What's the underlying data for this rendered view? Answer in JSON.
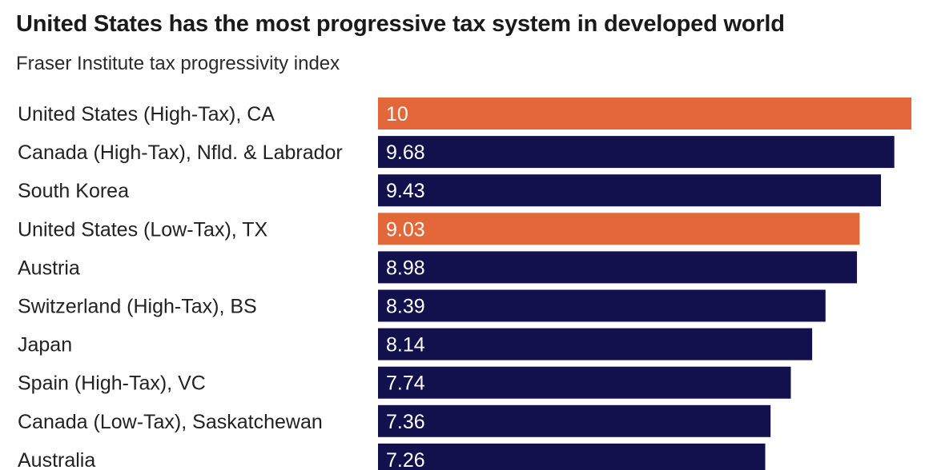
{
  "title": "United States has the most progressive tax system in developed world",
  "subtitle": "Fraser Institute tax progressivity index",
  "colors": {
    "highlight": "#E4673A",
    "default": "#12114E"
  },
  "chart_data": {
    "type": "bar",
    "orientation": "horizontal",
    "title": "United States has the most progressive tax system in developed world",
    "subtitle": "Fraser Institute tax progressivity index",
    "categories": [
      "United States (High-Tax), CA",
      "Canada (High-Tax), Nfld. & Labrador",
      "South Korea",
      "United States (Low-Tax), TX",
      "Austria",
      "Switzerland (High-Tax), BS",
      "Japan",
      "Spain (High-Tax), VC",
      "Canada (Low-Tax), Saskatchewan",
      "Australia"
    ],
    "values": [
      10,
      9.68,
      9.43,
      9.03,
      8.98,
      8.39,
      8.14,
      7.74,
      7.36,
      7.26
    ],
    "value_labels": [
      "10",
      "9.68",
      "9.43",
      "9.03",
      "8.98",
      "8.39",
      "8.14",
      "7.74",
      "7.36",
      "7.26"
    ],
    "highlighted": [
      true,
      false,
      false,
      true,
      false,
      false,
      false,
      false,
      false,
      false
    ],
    "xlim": [
      0,
      10
    ],
    "grid": false,
    "legend": "none"
  }
}
